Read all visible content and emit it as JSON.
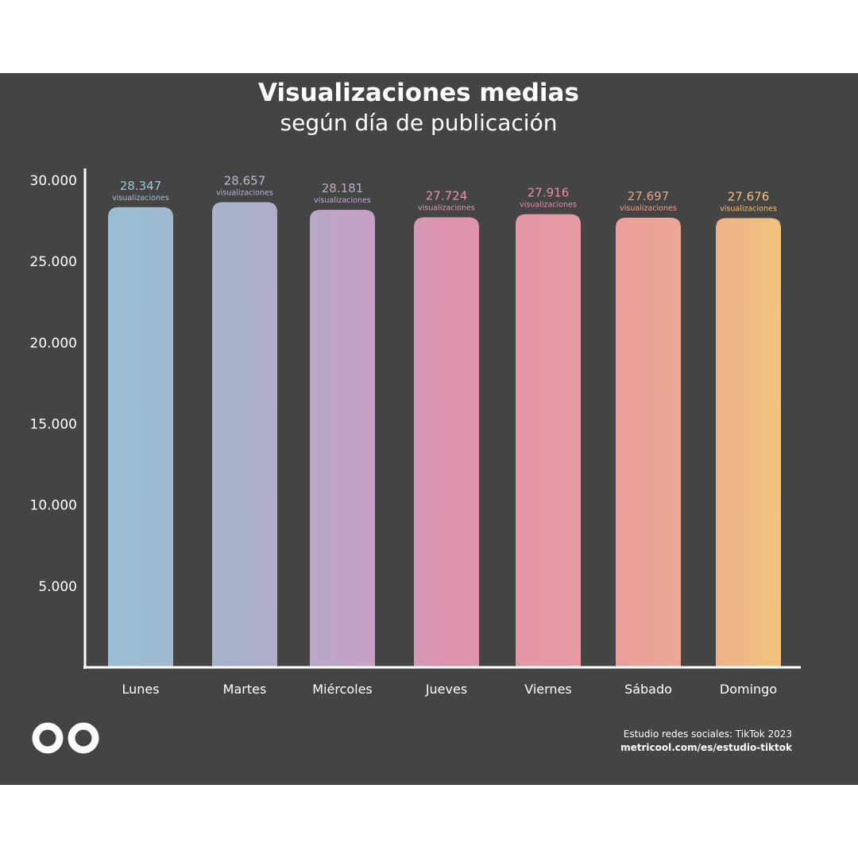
{
  "chart_data": {
    "type": "bar",
    "title": "Visualizaciones medias",
    "subtitle": "según día de publicación",
    "categories": [
      "Lunes",
      "Martes",
      "Miércoles",
      "Jueves",
      "Viernes",
      "Sábado",
      "Domingo"
    ],
    "values": [
      28347,
      28657,
      28181,
      27724,
      27916,
      27697,
      27676
    ],
    "value_labels": [
      "28.347",
      "28.657",
      "28.181",
      "27.724",
      "27.916",
      "27.697",
      "27.676"
    ],
    "value_unit": "visualizaciones",
    "ytick_labels": [
      "5.000",
      "10.000",
      "15.000",
      "20.000",
      "25.000",
      "30.000"
    ],
    "ytick_values": [
      5000,
      10000,
      15000,
      20000,
      25000,
      30000
    ],
    "ylim": [
      0,
      30000
    ],
    "xlabel": "",
    "ylabel": "",
    "grid": false,
    "legend": "none",
    "bar_colors": [
      "#98bdd2",
      "#aab0cb",
      "#c0a4c6",
      "#dd92ae",
      "#e699a3",
      "#eaa594",
      "#f0c07e"
    ],
    "label_colors": [
      "#9cc4d6",
      "#b4b8d4",
      "#c0a8cc",
      "#e890b4",
      "#ee8aa2",
      "#f29e8a",
      "#f2c07c"
    ]
  },
  "background_color": "#444444",
  "logo": {
    "icon": "metricool-infinity-icon"
  },
  "source": {
    "line1": "Estudio redes sociales: TikTok 2023",
    "line2": "metricool.com/es/estudio-tiktok"
  }
}
